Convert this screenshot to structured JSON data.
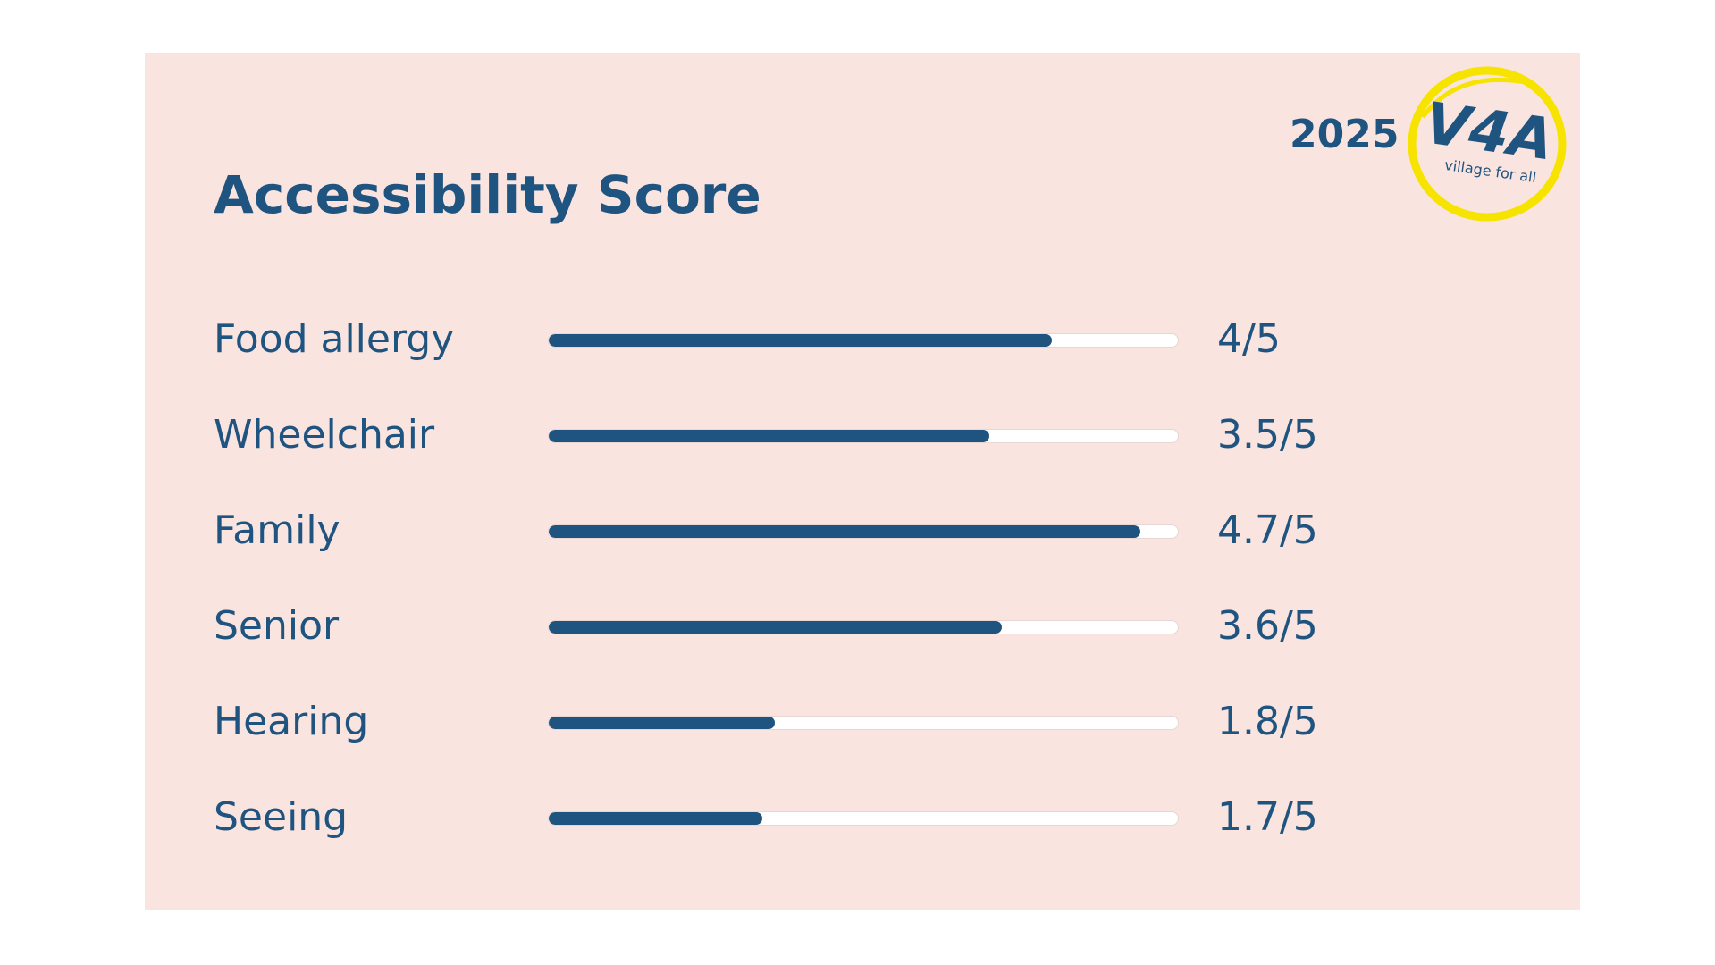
{
  "card": {
    "title": "Accessibility Score",
    "year": "2025",
    "logo": {
      "mark": "V4A",
      "tagline": "village for all",
      "ring_color": "#f7e300",
      "text_color": "#1f5480"
    },
    "accent_color": "#1f5480",
    "background_color": "#f9e4df",
    "max_score": 5,
    "rows": [
      {
        "label": "Food allergy",
        "score": 4,
        "score_text": "4/5"
      },
      {
        "label": "Wheelchair",
        "score": 3.5,
        "score_text": "3.5/5"
      },
      {
        "label": "Family",
        "score": 4.7,
        "score_text": "4.7/5"
      },
      {
        "label": "Senior",
        "score": 3.6,
        "score_text": "3.6/5"
      },
      {
        "label": "Hearing",
        "score": 1.8,
        "score_text": "1.8/5"
      },
      {
        "label": "Seeing",
        "score": 1.7,
        "score_text": "1.7/5"
      }
    ]
  }
}
